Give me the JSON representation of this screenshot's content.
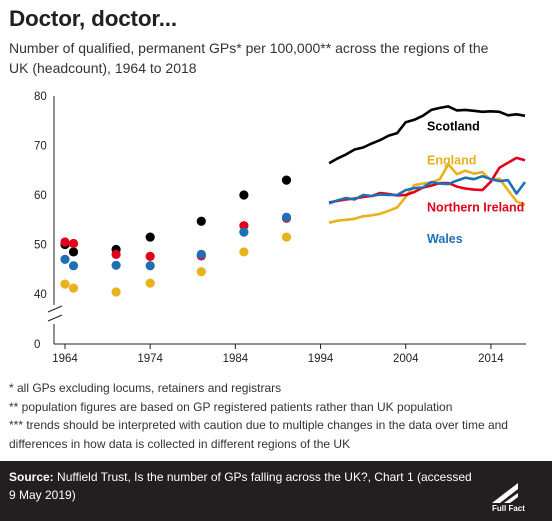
{
  "header": {
    "title": "Doctor, doctor...",
    "subtitle": "Number of qualified, permanent GPs* per 100,000** across the regions of the UK (headcount), 1964 to 2018"
  },
  "notes": [
    "* all GPs excluding locums, retainers and registrars",
    "** population figures are based on GP registered patients rather than UK population",
    "*** trends should be interpreted with caution due to multiple changes in the data over time and differences in how data is collected in different regions of the UK"
  ],
  "source": {
    "label": "Source:",
    "text": "Nuffield Trust, Is the number of GPs falling across the UK?, Chart 1 (accessed 9 May 2019)"
  },
  "logo": {
    "text": "Full Fact"
  },
  "colors": {
    "scotland": "#000000",
    "england": "#e8b21f",
    "northern_ireland": "#e2001a",
    "wales": "#1f6fb4",
    "axis": "#231f20",
    "source_bg": "#231f20"
  },
  "chart_data": {
    "type": "line",
    "xlim": [
      1964,
      2018
    ],
    "ylim": [
      0,
      80
    ],
    "y_break": [
      0,
      40
    ],
    "x_ticks": [
      1964,
      1974,
      1984,
      1994,
      2004,
      2014
    ],
    "y_ticks": [
      0,
      40,
      50,
      60,
      70,
      80
    ],
    "xlabel": "",
    "ylabel": "",
    "grid": false,
    "legend": "inline labels",
    "points": {
      "x": [
        1964,
        1965,
        1970,
        1974,
        1980,
        1985,
        1990
      ],
      "series": [
        {
          "name": "Scotland",
          "color_key": "scotland",
          "values": [
            50.0,
            48.5,
            49.0,
            51.5,
            54.7,
            60.0,
            63.0
          ]
        },
        {
          "name": "Northern Ireland",
          "color_key": "northern_ireland",
          "values": [
            50.5,
            50.2,
            48.0,
            47.6,
            47.7,
            53.8,
            55.3
          ]
        },
        {
          "name": "Wales",
          "color_key": "wales",
          "values": [
            47.0,
            45.7,
            45.8,
            45.7,
            48.0,
            52.5,
            55.5
          ]
        },
        {
          "name": "England",
          "color_key": "england",
          "values": [
            42.0,
            41.2,
            40.4,
            42.2,
            44.5,
            48.5,
            51.5
          ]
        }
      ]
    },
    "lines": {
      "x": [
        1995,
        1996,
        1997,
        1998,
        1999,
        2000,
        2001,
        2002,
        2003,
        2004,
        2005,
        2006,
        2007,
        2008,
        2009,
        2010,
        2011,
        2012,
        2013,
        2014,
        2015,
        2016,
        2017,
        2018
      ],
      "series": [
        {
          "name": "Scotland",
          "label": "Scotland",
          "color_key": "scotland",
          "values": [
            66.4,
            67.4,
            68.2,
            69.2,
            69.6,
            70.4,
            71.1,
            72.0,
            72.5,
            74.7,
            75.2,
            76.0,
            77.2,
            77.6,
            77.9,
            77.1,
            77.2,
            77.0,
            76.8,
            76.9,
            76.8,
            76.1,
            76.3,
            76.0
          ]
        },
        {
          "name": "England",
          "label": "England",
          "color_key": "england",
          "values": [
            54.4,
            54.8,
            55.0,
            55.2,
            55.7,
            55.9,
            56.2,
            56.8,
            57.5,
            59.6,
            62.0,
            62.3,
            62.5,
            63.2,
            66.2,
            64.2,
            64.9,
            64.3,
            64.6,
            63.0,
            63.3,
            61.0,
            58.7,
            58.0
          ]
        },
        {
          "name": "Northern Ireland",
          "label": "Northern Ireland",
          "color_key": "northern_ireland",
          "values": [
            58.5,
            58.8,
            59.1,
            59.3,
            59.6,
            59.8,
            60.4,
            60.2,
            59.9,
            60.0,
            60.6,
            61.5,
            61.9,
            62.4,
            62.4,
            61.7,
            61.3,
            61.1,
            61.0,
            62.7,
            65.5,
            66.5,
            67.5,
            67.0
          ]
        },
        {
          "name": "Wales",
          "label": "Wales",
          "color_key": "wales",
          "values": [
            58.3,
            58.9,
            59.4,
            59.1,
            60.0,
            59.8,
            60.1,
            60.0,
            60.0,
            61.0,
            61.4,
            61.5,
            62.6,
            62.3,
            62.2,
            62.9,
            63.5,
            63.2,
            63.8,
            63.2,
            62.8,
            63.0,
            60.3,
            62.6
          ]
        }
      ]
    }
  }
}
